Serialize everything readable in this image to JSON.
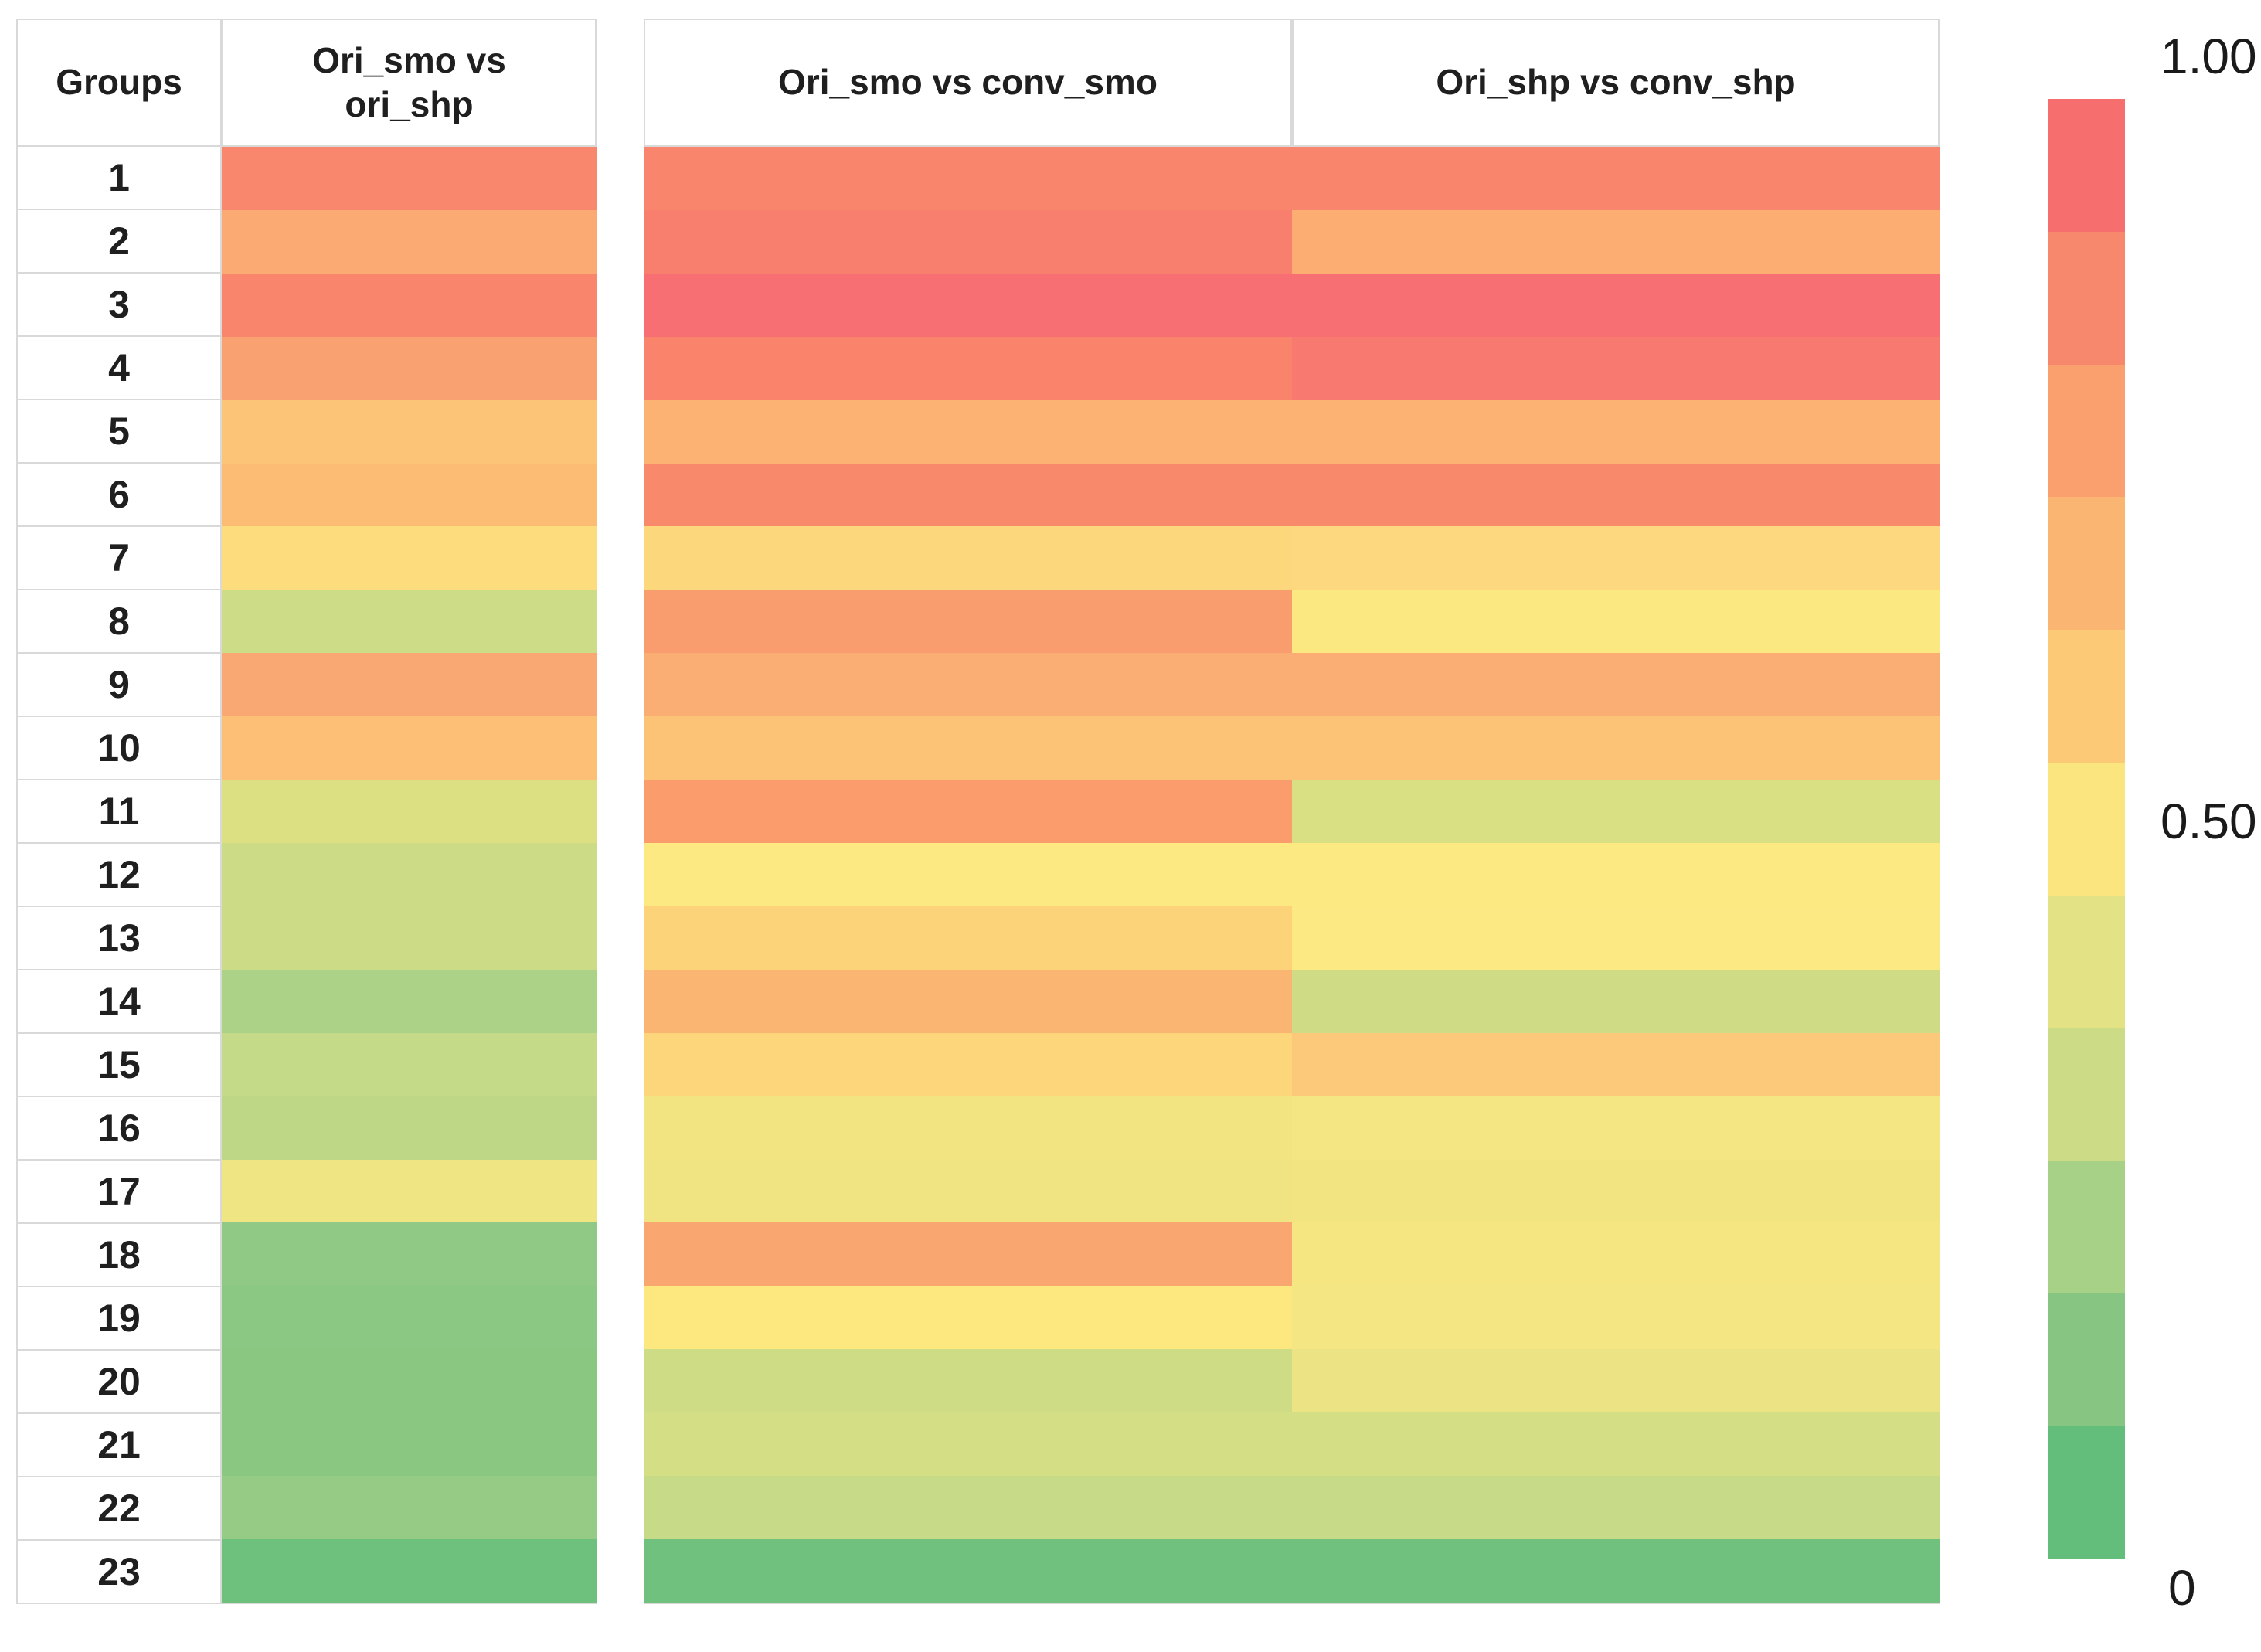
{
  "table": {
    "groups_header": "Groups",
    "columns": [
      {
        "label": "Ori_smo vs ori_shp"
      },
      {
        "label": "Ori_smo vs conv_smo"
      },
      {
        "label": "Ori_shp vs conv_shp"
      }
    ]
  },
  "legend": {
    "max_label": "1.00",
    "mid_label": "0.50",
    "min_label": "0",
    "steps_top_to_bottom": [
      "#F76E6F",
      "#F8886D",
      "#FA9F6E",
      "#FBB573",
      "#FCCA77",
      "#FAE57E",
      "#E3E285",
      "#CBDB86",
      "#A8D188",
      "#86C682",
      "#63BE7B"
    ]
  },
  "chart_data": {
    "type": "heatmap",
    "title": "",
    "row_label_header": "Groups",
    "columns": [
      "Ori_smo vs ori_shp",
      "Ori_smo vs conv_smo",
      "Ori_shp vs conv_shp"
    ],
    "scale": {
      "min": 0,
      "mid": 0.5,
      "max": 1.0,
      "min_color": "#63BE7B",
      "mid_color": "#FFEB84",
      "max_color": "#F8696B",
      "legend_labels": [
        "1.00",
        "0.50",
        "0"
      ],
      "legend_position": "right",
      "note": "values estimated from cell colors via the 0-1 red-yellow-green legend"
    },
    "rows": [
      {
        "group": "1",
        "values": [
          0.89,
          0.9,
          0.9
        ],
        "colors": [
          "#F8876D",
          "#F9856C",
          "#F9856C"
        ]
      },
      {
        "group": "2",
        "values": [
          0.78,
          0.93,
          0.77
        ],
        "colors": [
          "#FBAA73",
          "#F87E6E",
          "#FBAD72"
        ]
      },
      {
        "group": "3",
        "values": [
          0.89,
          0.98,
          0.98
        ],
        "colors": [
          "#F8856C",
          "#F76F72",
          "#F76F72"
        ]
      },
      {
        "group": "4",
        "values": [
          0.8,
          0.9,
          0.94
        ],
        "colors": [
          "#FAA171",
          "#F9846B",
          "#F8796F"
        ]
      },
      {
        "group": "5",
        "values": [
          0.69,
          0.75,
          0.75
        ],
        "colors": [
          "#FCC476",
          "#FBB273",
          "#FBB273"
        ]
      },
      {
        "group": "6",
        "values": [
          0.72,
          0.88,
          0.88
        ],
        "colors": [
          "#FCBC74",
          "#F9896B",
          "#F9896B"
        ]
      },
      {
        "group": "7",
        "values": [
          0.6,
          0.62,
          0.61
        ],
        "colors": [
          "#FDDC7D",
          "#FDD77C",
          "#FDD87E"
        ]
      },
      {
        "group": "8",
        "values": [
          0.35,
          0.82,
          0.52
        ],
        "colors": [
          "#CDDC86",
          "#FA9D6E",
          "#FCE881"
        ]
      },
      {
        "group": "9",
        "values": [
          0.79,
          0.76,
          0.76
        ],
        "colors": [
          "#FAA873",
          "#FBAE73",
          "#FBAE73"
        ]
      },
      {
        "group": "10",
        "values": [
          0.71,
          0.7,
          0.7
        ],
        "colors": [
          "#FCBF75",
          "#FCC276",
          "#FCC276"
        ]
      },
      {
        "group": "11",
        "values": [
          0.41,
          0.82,
          0.4
        ],
        "colors": [
          "#DCE083",
          "#FA9C6C",
          "#D9E083"
        ]
      },
      {
        "group": "12",
        "values": [
          0.35,
          0.52,
          0.52
        ],
        "colors": [
          "#CCDC86",
          "#FCE981",
          "#FCE981"
        ]
      },
      {
        "group": "13",
        "values": [
          0.35,
          0.64,
          0.52
        ],
        "colors": [
          "#CCDC86",
          "#FDD37A",
          "#FCE983"
        ]
      },
      {
        "group": "14",
        "values": [
          0.25,
          0.75,
          0.36
        ],
        "colors": [
          "#ABD287",
          "#FBB573",
          "#CFDC85"
        ]
      },
      {
        "group": "15",
        "values": [
          0.32,
          0.62,
          0.68
        ],
        "colors": [
          "#C4DA88",
          "#FDD67C",
          "#FCC97A"
        ]
      },
      {
        "group": "16",
        "values": [
          0.3,
          0.47,
          0.48
        ],
        "colors": [
          "#BED786",
          "#F2E480",
          "#F4E682"
        ]
      },
      {
        "group": "17",
        "values": [
          0.46,
          0.47,
          0.47
        ],
        "colors": [
          "#EFE583",
          "#F0E482",
          "#F2E481"
        ]
      },
      {
        "group": "18",
        "values": [
          0.16,
          0.79,
          0.49
        ],
        "colors": [
          "#8FC985",
          "#FAA671",
          "#F6E681"
        ]
      },
      {
        "group": "19",
        "values": [
          0.14,
          0.51,
          0.48
        ],
        "colors": [
          "#8BC883",
          "#FCE87F",
          "#F4E682"
        ]
      },
      {
        "group": "20",
        "values": [
          0.14,
          0.36,
          0.45
        ],
        "colors": [
          "#8AC882",
          "#CEDC86",
          "#ECE384"
        ]
      },
      {
        "group": "21",
        "values": [
          0.14,
          0.38,
          0.38
        ],
        "colors": [
          "#8AC882",
          "#D3DE85",
          "#D3DE85"
        ]
      },
      {
        "group": "22",
        "values": [
          0.18,
          0.33,
          0.33
        ],
        "colors": [
          "#95CB84",
          "#C6DA87",
          "#C6DA87"
        ]
      },
      {
        "group": "23",
        "values": [
          0.04,
          0.05,
          0.05
        ],
        "colors": [
          "#6DC17D",
          "#6FC17D",
          "#6FC17D"
        ]
      }
    ]
  }
}
